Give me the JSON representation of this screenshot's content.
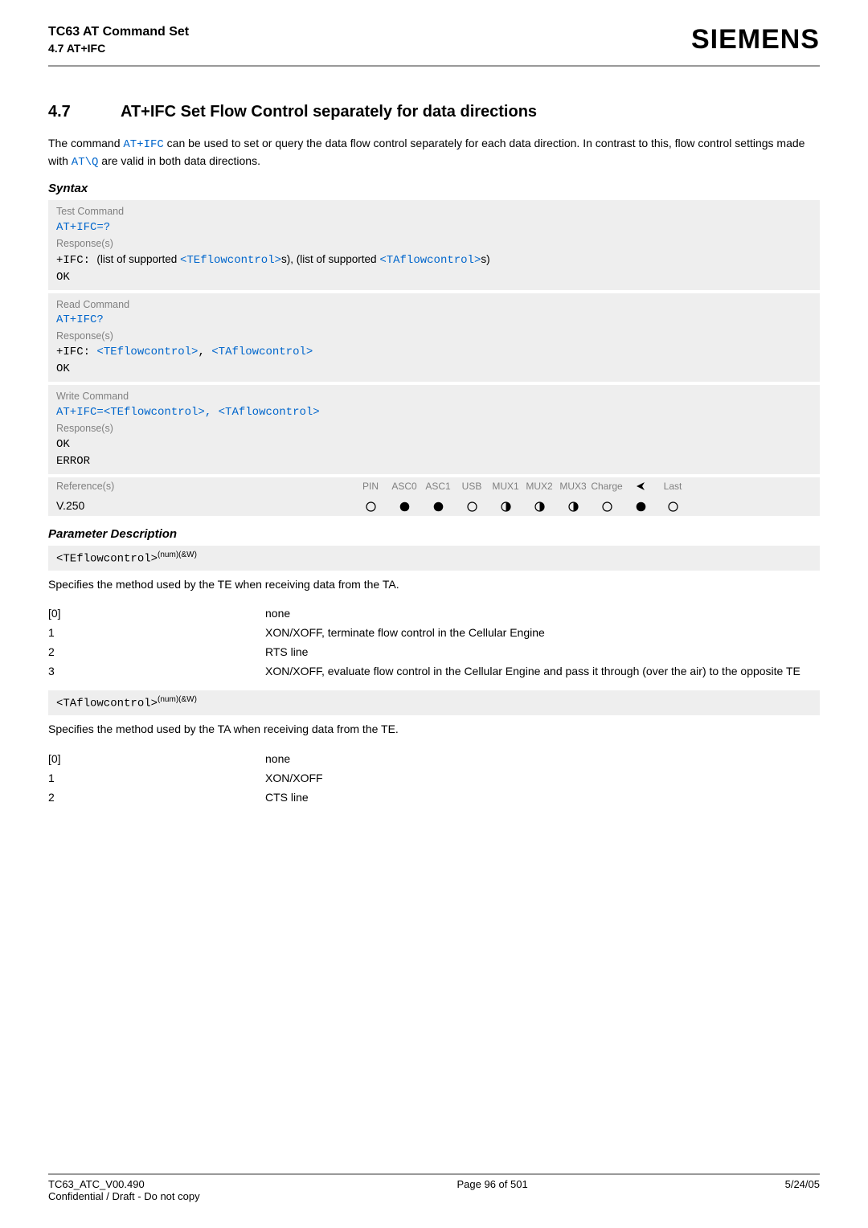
{
  "header": {
    "title": "TC63 AT Command Set",
    "sub": "4.7 AT+IFC",
    "brand": "SIEMENS"
  },
  "section": {
    "num": "4.7",
    "title": "AT+IFC   Set Flow Control separately for data directions"
  },
  "intro": {
    "p1a": "The command ",
    "link1": "AT+IFC",
    "p1b": " can be used to set or query the data flow control separately for each data direction. In contrast to this, flow control settings made with ",
    "link2": "AT\\Q",
    "p1c": " are valid in both data directions."
  },
  "syntax_label": "Syntax",
  "boxes": {
    "test_label": "Test Command",
    "test_cmd": "AT+IFC=?",
    "resp_label": "Response(s)",
    "test_resp_a": "+IFC: ",
    "test_resp_b": "(list of supported ",
    "test_resp_tag1": "<TEflowcontrol>",
    "test_resp_c": "s), (list of supported ",
    "test_resp_tag2": "<TAflowcontrol>",
    "test_resp_d": "s)",
    "ok": "OK",
    "read_label": "Read Command",
    "read_cmd": "AT+IFC?",
    "read_resp_a": "+IFC: ",
    "read_resp_tag1": "<TEflowcontrol>",
    "read_resp_sep": ", ",
    "read_resp_tag2": "<TAflowcontrol>",
    "write_label": "Write Command",
    "write_cmd_a": "AT+IFC=",
    "write_cmd_tag1": "<TEflowcontrol>",
    "write_cmd_sep": ", ",
    "write_cmd_tag2": "<TAflowcontrol>",
    "error": "ERROR",
    "ref_label": "Reference(s)",
    "ref_cols": [
      "PIN",
      "ASC0",
      "ASC1",
      "USB",
      "MUX1",
      "MUX2",
      "MUX3",
      "Charge",
      "",
      "Last"
    ],
    "ref_val": "V.250",
    "ref_states": [
      "empty",
      "full",
      "full",
      "empty",
      "half",
      "half",
      "half",
      "empty",
      "full",
      "empty"
    ]
  },
  "param_label": "Parameter Description",
  "param1": {
    "tag": "<TEflowcontrol>",
    "sup": "(num)(&W)",
    "desc": "Specifies the method used by the TE when receiving data from the TA.",
    "rows": [
      {
        "k": "[0]",
        "v": "none"
      },
      {
        "k": "1",
        "v": "XON/XOFF, terminate flow control in the Cellular Engine"
      },
      {
        "k": "2",
        "v": "RTS line"
      },
      {
        "k": "3",
        "v": "XON/XOFF, evaluate flow control in the Cellular Engine and pass it through (over the air) to the opposite TE"
      }
    ]
  },
  "param2": {
    "tag": "<TAflowcontrol>",
    "sup": "(num)(&W)",
    "desc": "Specifies the method used by the TA when receiving data from the TE.",
    "rows": [
      {
        "k": "[0]",
        "v": "none"
      },
      {
        "k": "1",
        "v": "XON/XOFF"
      },
      {
        "k": "2",
        "v": "CTS line"
      }
    ]
  },
  "footer": {
    "left1": "TC63_ATC_V00.490",
    "left2": "Confidential / Draft - Do not copy",
    "center": "Page 96 of 501",
    "right": "5/24/05"
  }
}
